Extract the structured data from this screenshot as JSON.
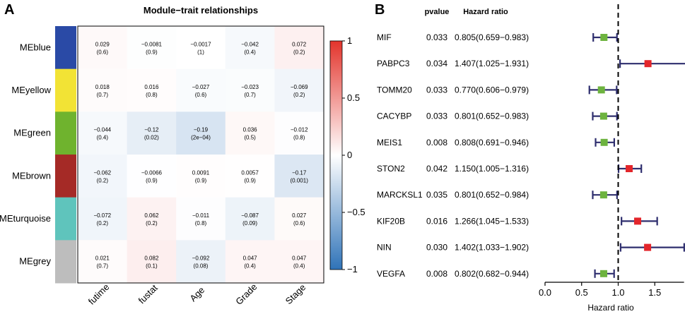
{
  "chart_data": [
    {
      "type": "heatmap",
      "panel": "A",
      "title": "Module−trait relationships",
      "rows": [
        "MEblue",
        "MEyellow",
        "MEgreen",
        "MEbrown",
        "MEturquoise",
        "MEgrey"
      ],
      "row_colors": [
        "#2a4aa6",
        "#f2e335",
        "#6fb32e",
        "#a52a26",
        "#5fc4bc",
        "#bdbdbd"
      ],
      "columns": [
        "futime",
        "fustat",
        "Age",
        "Grade",
        "Stage"
      ],
      "values": [
        [
          0.029,
          -0.0081,
          -0.0017,
          -0.042,
          0.072
        ],
        [
          0.018,
          0.016,
          -0.027,
          -0.023,
          -0.069
        ],
        [
          -0.044,
          -0.12,
          -0.19,
          0.036,
          -0.012
        ],
        [
          -0.062,
          -0.0066,
          0.0091,
          0.0057,
          -0.17
        ],
        [
          -0.072,
          0.062,
          -0.011,
          -0.087,
          0.027
        ],
        [
          0.021,
          0.082,
          -0.092,
          0.047,
          0.047
        ]
      ],
      "labels": [
        [
          "0.029",
          "−0.0081",
          "−0.0017",
          "−0.042",
          "0.072"
        ],
        [
          "0.018",
          "0.016",
          "−0.027",
          "−0.023",
          "−0.069"
        ],
        [
          "−0.044",
          "−0.12",
          "−0.19",
          "0.036",
          "−0.012"
        ],
        [
          "−0.062",
          "−0.0066",
          "0.0091",
          "0.0057",
          "−0.17"
        ],
        [
          "−0.072",
          "0.062",
          "−0.011",
          "−0.087",
          "0.027"
        ],
        [
          "0.021",
          "0.082",
          "−0.092",
          "0.047",
          "0.047"
        ]
      ],
      "pvalues": [
        [
          "(0.6)",
          "(0.9)",
          "(1)",
          "(0.4)",
          "(0.2)"
        ],
        [
          "(0.7)",
          "(0.8)",
          "(0.6)",
          "(0.7)",
          "(0.2)"
        ],
        [
          "(0.4)",
          "(0.02)",
          "(2e−04)",
          "(0.5)",
          "(0.8)"
        ],
        [
          "(0.2)",
          "(0.9)",
          "(0.9)",
          "(0.9)",
          "(0.001)"
        ],
        [
          "(0.2)",
          "(0.2)",
          "(0.8)",
          "(0.09)",
          "(0.6)"
        ],
        [
          "(0.7)",
          "(0.1)",
          "(0.08)",
          "(0.4)",
          "(0.4)"
        ]
      ],
      "colorbar": {
        "range": [
          -1,
          1
        ],
        "ticks": [
          1,
          0.5,
          0,
          -0.5,
          -1
        ],
        "tick_labels": [
          "1",
          "0.5",
          "0",
          "−0.5",
          "−1"
        ],
        "low_color": "#2f73b8",
        "mid_color": "#ffffff",
        "high_color": "#e3342c"
      }
    },
    {
      "type": "scatter",
      "subtype": "forest",
      "panel": "B",
      "col_pvalue": "pvalue",
      "col_hr": "Hazard ratio",
      "genes": [
        "MIF",
        "PABPC3",
        "TOMM20",
        "CACYBP",
        "MEIS1",
        "STON2",
        "MARCKSL1",
        "KIF20B",
        "NIN",
        "VEGFA"
      ],
      "pvalue": [
        "0.033",
        "0.034",
        "0.033",
        "0.033",
        "0.008",
        "0.042",
        "0.035",
        "0.016",
        "0.030",
        "0.008"
      ],
      "hr_text": [
        "0.805(0.659−0.983)",
        "1.407(1.025−1.931)",
        "0.770(0.606−0.979)",
        "0.801(0.652−0.983)",
        "0.808(0.691−0.946)",
        "1.150(1.005−1.316)",
        "0.801(0.652−0.984)",
        "1.266(1.045−1.533)",
        "1.402(1.033−1.902)",
        "0.802(0.682−0.944)"
      ],
      "hr": [
        0.805,
        1.407,
        0.77,
        0.801,
        0.808,
        1.15,
        0.801,
        1.266,
        1.402,
        0.802
      ],
      "lower": [
        0.659,
        1.025,
        0.606,
        0.652,
        0.691,
        1.005,
        0.652,
        1.045,
        1.033,
        0.682
      ],
      "upper": [
        0.983,
        1.931,
        0.979,
        0.983,
        0.946,
        1.316,
        0.984,
        1.533,
        1.902,
        0.944
      ],
      "xlim": [
        0,
        1.9
      ],
      "xticks": [
        0,
        0.5,
        1,
        1.5
      ],
      "xtick_labels": [
        "0.0",
        "0.5",
        "1.0",
        "1.5"
      ],
      "xlabel": "Hazard ratio",
      "reference_line": 1,
      "colors": {
        "protective": "#6db33f",
        "risk": "#e3262b",
        "whisker": "#2e2e6e"
      }
    }
  ],
  "panels": {
    "a": "A",
    "b": "B"
  }
}
